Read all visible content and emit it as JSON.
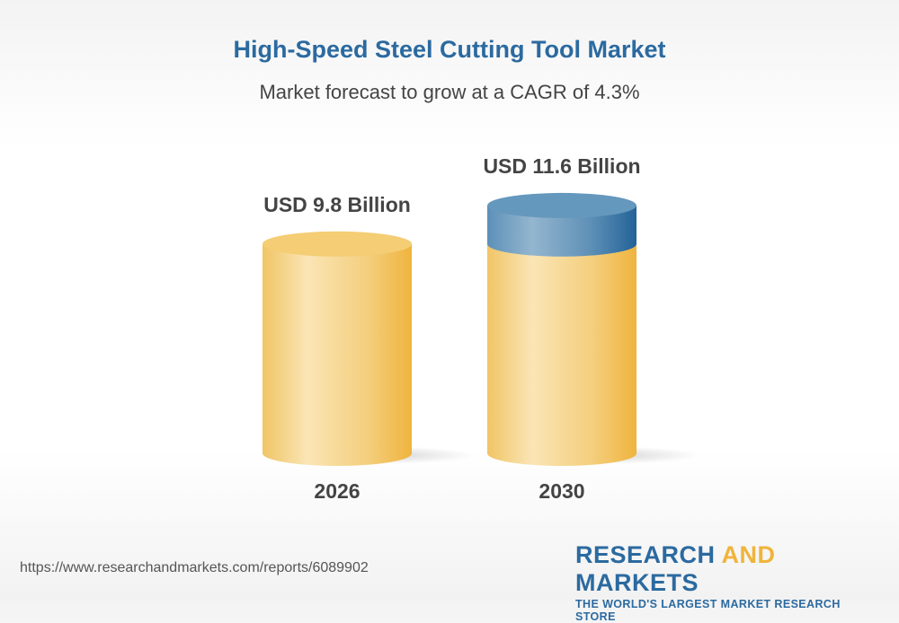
{
  "header": {
    "title": "High-Speed Steel Cutting Tool Market",
    "subtitle": "Market forecast to grow at a CAGR of 4.3%"
  },
  "chart_data": {
    "type": "bar",
    "style": "3d-cylinder",
    "categories": [
      "2026",
      "2030"
    ],
    "values": [
      9.8,
      11.6
    ],
    "data_labels": [
      "USD 9.8 Billion",
      "USD 11.6 Billion"
    ],
    "colors": {
      "base": "#f2c462",
      "growth": "#2b6aa0"
    },
    "title": "High-Speed Steel Cutting Tool Market",
    "subtitle": "Market forecast to grow at a CAGR of 4.3%"
  },
  "footer": {
    "url": "https://www.researchandmarkets.com/reports/6089902",
    "logo": {
      "part1": "RESEARCH ",
      "part2": "AND",
      "part3": " MARKETS",
      "tagline": "THE WORLD'S LARGEST MARKET RESEARCH STORE"
    }
  }
}
